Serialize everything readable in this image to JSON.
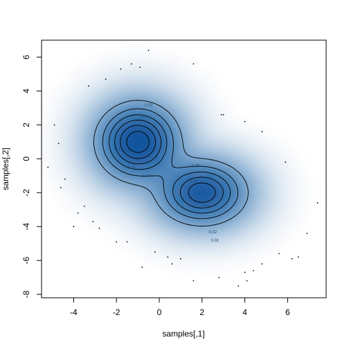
{
  "chart_data": {
    "type": "smoothscatter-contour",
    "title": "",
    "xlabel": "samples[,1]",
    "ylabel": "samples[,2]",
    "xlim": [
      -5.5,
      7.8
    ],
    "ylim": [
      -8.2,
      7.0
    ],
    "x_ticks": [
      -4,
      -2,
      0,
      2,
      4,
      6
    ],
    "y_ticks": [
      -8,
      -6,
      -4,
      -2,
      0,
      2,
      4,
      6
    ],
    "density_color": "#08519c",
    "contour_color": "#000000",
    "modes": [
      {
        "x": -1.0,
        "y": 1.0,
        "sx": 1.05,
        "sy": 1.25,
        "weight": 0.56
      },
      {
        "x": 2.0,
        "y": -2.0,
        "sx": 1.15,
        "sy": 1.05,
        "weight": 0.44
      }
    ],
    "contour_levels": [
      0.01,
      0.02,
      0.03,
      0.04,
      0.05,
      0.06,
      0.07,
      0.08,
      0.09,
      0.1,
      0.11
    ],
    "contour_labels": [
      {
        "x": -0.5,
        "y": 3.1,
        "label": "0.03"
      },
      {
        "x": -0.7,
        "y": 2.4,
        "label": "0.05"
      },
      {
        "x": -1.9,
        "y": 0.5,
        "label": "0.07"
      },
      {
        "x": -1.3,
        "y": -0.6,
        "label": "0.06"
      },
      {
        "x": -0.6,
        "y": -1.1,
        "label": "0.04"
      },
      {
        "x": 1.7,
        "y": -0.5,
        "label": "0.05"
      },
      {
        "x": 1.6,
        "y": -1.4,
        "label": "0.09"
      },
      {
        "x": 2.2,
        "y": -2.9,
        "label": "0.08"
      },
      {
        "x": 2.5,
        "y": -4.4,
        "label": "0.02"
      },
      {
        "x": 2.6,
        "y": -4.9,
        "label": "0.01"
      }
    ],
    "outliers": [
      [
        -5.2,
        -0.5
      ],
      [
        -4.9,
        2.0
      ],
      [
        -4.7,
        0.9
      ],
      [
        -4.6,
        -1.7
      ],
      [
        -4.4,
        -1.2
      ],
      [
        -3.8,
        -3.2
      ],
      [
        -4.0,
        -4.0
      ],
      [
        -3.3,
        4.3
      ],
      [
        -2.5,
        4.7
      ],
      [
        -1.8,
        5.3
      ],
      [
        -1.3,
        5.6
      ],
      [
        -0.9,
        5.4
      ],
      [
        -0.5,
        6.4
      ],
      [
        1.6,
        5.6
      ],
      [
        2.9,
        2.6
      ],
      [
        3.0,
        2.6
      ],
      [
        4.0,
        2.2
      ],
      [
        4.8,
        1.6
      ],
      [
        5.9,
        -0.2
      ],
      [
        7.4,
        -2.6
      ],
      [
        6.9,
        -4.4
      ],
      [
        6.5,
        -5.8
      ],
      [
        6.2,
        -5.9
      ],
      [
        5.6,
        -5.6
      ],
      [
        4.8,
        -6.2
      ],
      [
        4.4,
        -6.6
      ],
      [
        4.0,
        -6.7
      ],
      [
        4.1,
        -7.2
      ],
      [
        3.7,
        -7.5
      ],
      [
        2.8,
        -7.0
      ],
      [
        1.6,
        -7.2
      ],
      [
        1.0,
        -5.9
      ],
      [
        0.6,
        -6.2
      ],
      [
        0.4,
        -5.8
      ],
      [
        -0.2,
        -5.5
      ],
      [
        -0.8,
        -6.4
      ],
      [
        -1.5,
        -4.9
      ],
      [
        -2.0,
        -4.9
      ],
      [
        -2.8,
        -4.1
      ],
      [
        -3.1,
        -3.7
      ],
      [
        -3.5,
        -2.8
      ]
    ]
  }
}
